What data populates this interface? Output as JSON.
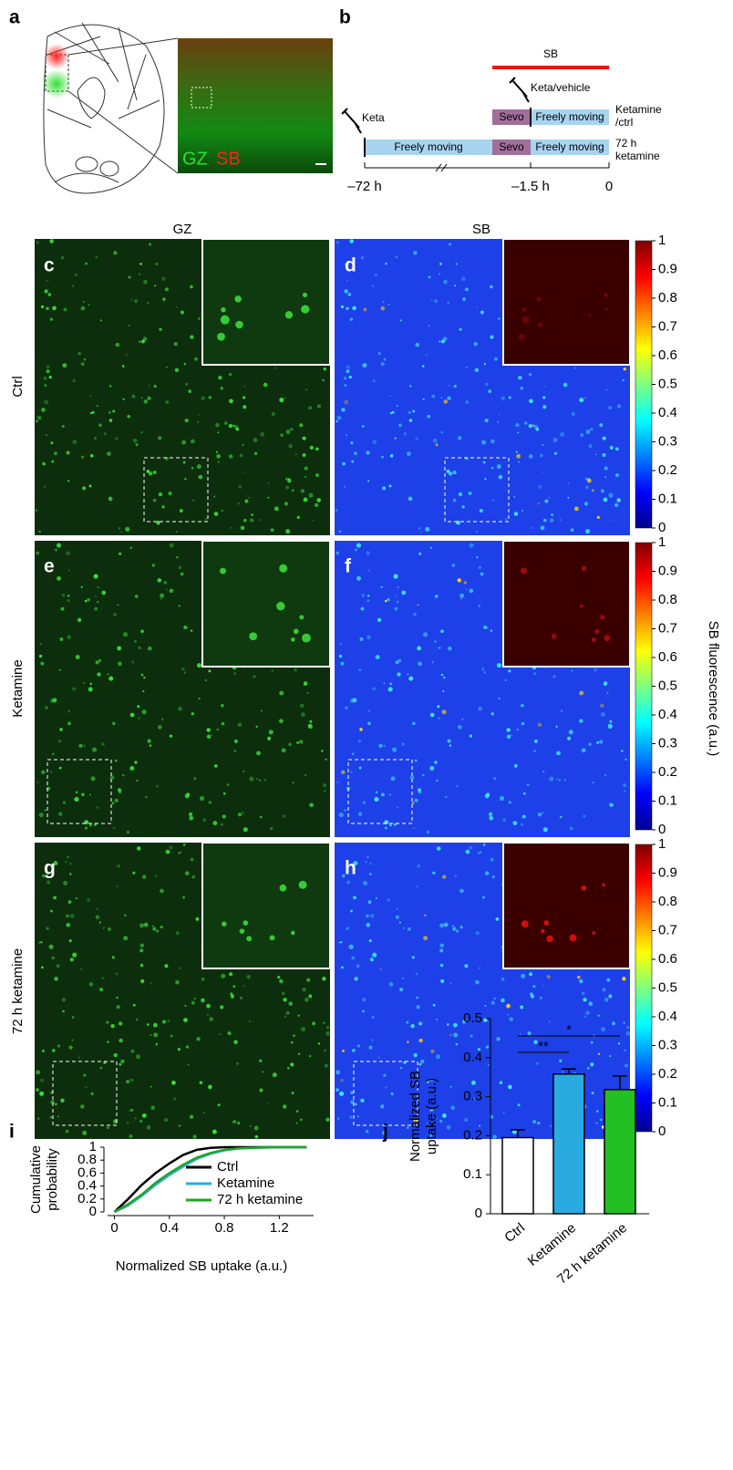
{
  "panel_labels": [
    "a",
    "b",
    "c",
    "d",
    "e",
    "f",
    "g",
    "h",
    "i",
    "j"
  ],
  "panel_a": {
    "labels": [
      "GZ",
      "SB"
    ]
  },
  "panel_b": {
    "sb": "SB",
    "keta_vehicle": "Keta/vehicle",
    "keta": "Keta",
    "row1_sevo": "Sevo",
    "row1_moving": "Freely moving",
    "row1_label": [
      "Ketamine",
      "/ctrl"
    ],
    "row2_moving_1": "Freely moving",
    "row2_sevo": "Sevo",
    "row2_moving_2": "Freely moving",
    "row2_label": [
      "72 h",
      "ketamine"
    ],
    "times": [
      "–72 h",
      "–1.5 h",
      "0"
    ]
  },
  "columns": [
    "GZ",
    "SB"
  ],
  "rows": [
    "Ctrl",
    "Ketamine",
    "72 h ketamine"
  ],
  "colorbar": {
    "label": "SB fluorescence (a.u.)",
    "ticks": [
      0,
      0.1,
      0.2,
      0.3,
      0.4,
      0.5,
      0.6,
      0.7,
      0.8,
      0.9,
      1
    ]
  },
  "chart_data": [
    {
      "type": "line",
      "xlabel": "Normalized SB uptake (a.u.)",
      "ylabel": [
        "Cumulative",
        "probability"
      ],
      "x": [
        0,
        0.1,
        0.2,
        0.3,
        0.4,
        0.5,
        0.6,
        0.7,
        0.8,
        0.9,
        1.0,
        1.2,
        1.4
      ],
      "series": [
        {
          "name": "Ctrl",
          "color": "#000000",
          "values": [
            0,
            0.2,
            0.42,
            0.6,
            0.75,
            0.88,
            0.96,
            0.99,
            1,
            1,
            1,
            1,
            1
          ]
        },
        {
          "name": "Ketamine",
          "color": "#29abe2",
          "values": [
            0,
            0.1,
            0.25,
            0.42,
            0.57,
            0.7,
            0.82,
            0.9,
            0.95,
            0.98,
            0.99,
            1,
            1
          ]
        },
        {
          "name": "72 h ketamine",
          "color": "#22a524",
          "values": [
            0,
            0.12,
            0.27,
            0.45,
            0.6,
            0.73,
            0.84,
            0.91,
            0.96,
            0.98,
            0.99,
            1,
            1
          ]
        }
      ],
      "xlim": [
        -0.05,
        1.45
      ],
      "xticks": [
        0,
        0.4,
        0.8,
        1.2
      ],
      "ylim": [
        0,
        1
      ],
      "yticks": [
        0,
        0.2,
        0.4,
        0.6,
        0.8,
        1
      ],
      "legend": "lower right"
    },
    {
      "type": "bar",
      "ylabel": [
        "Normalized SB",
        "uptake (a.u.)"
      ],
      "categories": [
        "Ctrl",
        "Ketamine",
        "72 h ketamine"
      ],
      "values": [
        0.195,
        0.358,
        0.318
      ],
      "errors": [
        0.02,
        0.013,
        0.035
      ],
      "colors": [
        "#ffffff",
        "#29abe2",
        "#22c022"
      ],
      "ylim": [
        0,
        0.5
      ],
      "yticks": [
        0,
        0.1,
        0.2,
        0.3,
        0.4,
        0.5
      ],
      "annotations": [
        "**",
        "*"
      ]
    }
  ]
}
